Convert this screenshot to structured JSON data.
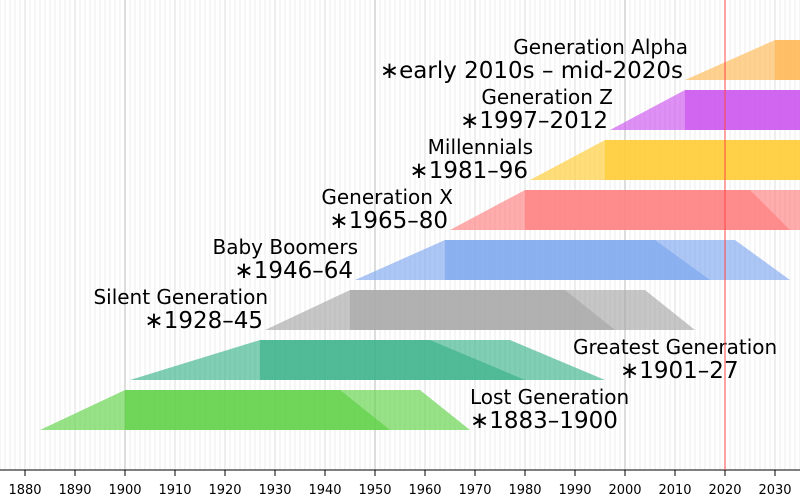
{
  "chart_data": {
    "type": "generation-timeline",
    "xlim": [
      1875,
      2035
    ],
    "xticks": [
      1880,
      1890,
      1900,
      1910,
      1920,
      1930,
      1940,
      1950,
      1960,
      1970,
      1980,
      1990,
      2000,
      2010,
      2020,
      2030
    ],
    "grid": true,
    "marker_line": 2020,
    "series": [
      {
        "name": "Lost Generation",
        "label": "∗1883–1900",
        "start": 1883,
        "end": 1900,
        "color": "#5fd147"
      },
      {
        "name": "Greatest Generation",
        "label": "∗1901–27",
        "start": 1901,
        "end": 1927,
        "color": "#3cb48a"
      },
      {
        "name": "Silent Generation",
        "label": "∗1928–45",
        "start": 1928,
        "end": 1945,
        "color": "#a8a8a8"
      },
      {
        "name": "Baby Boomers",
        "label": "∗1946–64",
        "start": 1946,
        "end": 1964,
        "color": "#7fa8f0"
      },
      {
        "name": "Generation X",
        "label": "∗1965–80",
        "start": 1965,
        "end": 1980,
        "color": "#ff7f7f"
      },
      {
        "name": "Millennials",
        "label": "∗1981–96",
        "start": 1981,
        "end": 1996,
        "color": "#ffcc33"
      },
      {
        "name": "Generation Z",
        "label": "∗1997–2012",
        "start": 1997,
        "end": 2012,
        "color": "#cc55ee"
      },
      {
        "name": "Generation Alpha",
        "label": "∗early 2010s – mid-2020s",
        "start": 2012,
        "end": 2030,
        "color": "#ffb855"
      }
    ]
  }
}
